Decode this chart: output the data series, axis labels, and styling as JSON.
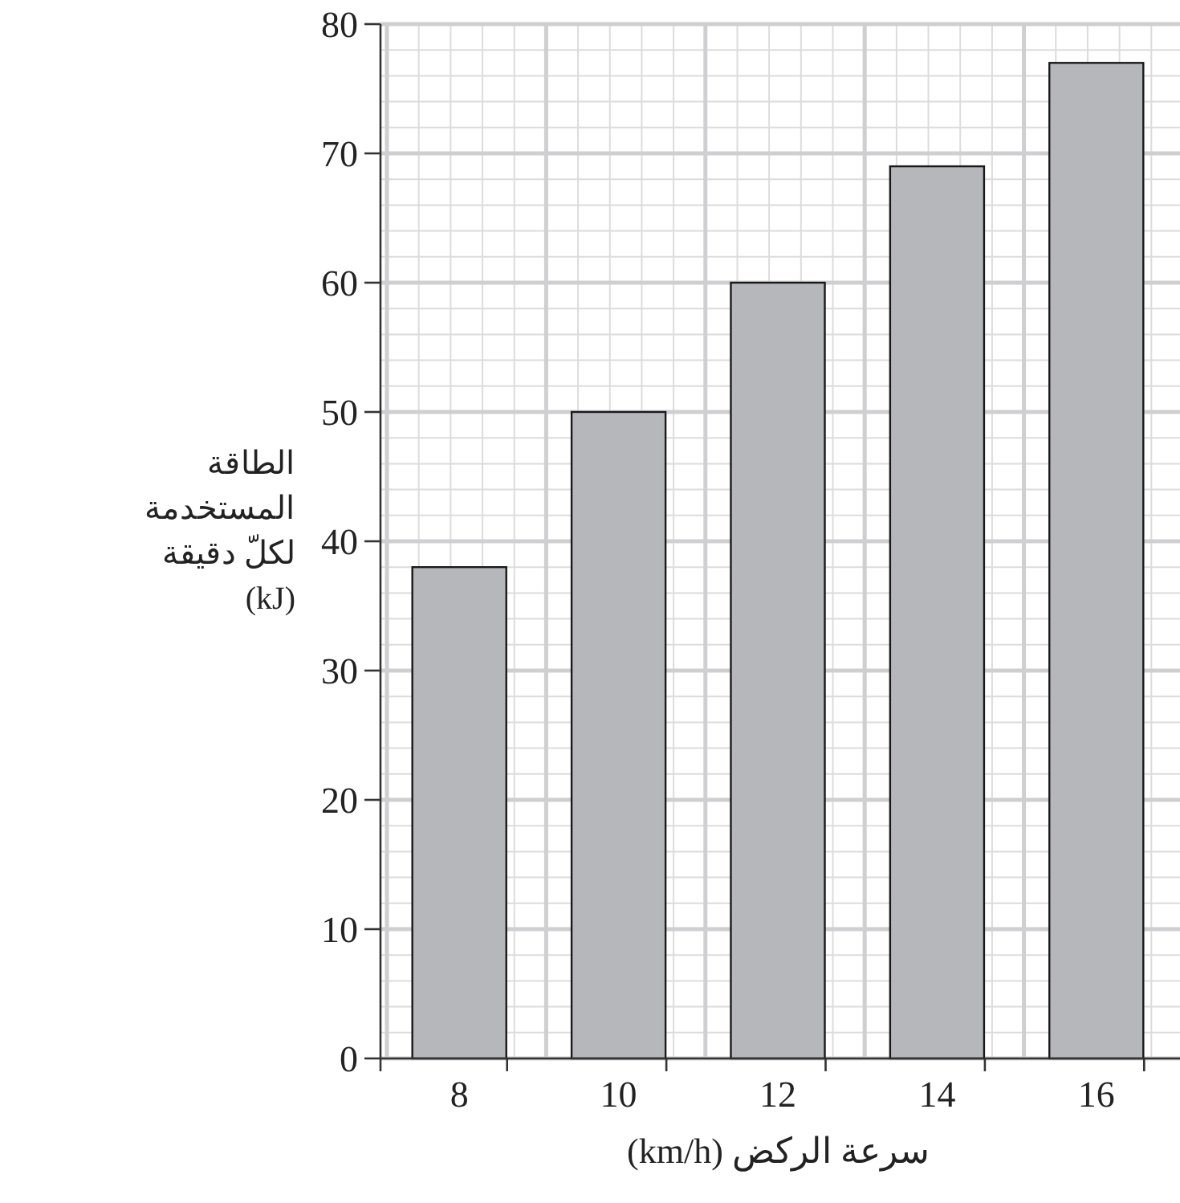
{
  "chart_data": {
    "type": "bar",
    "xlabel": "سرعة الركض (km/h)",
    "ylabel": "الطاقة\nالمستخدمة\nلكلّ دقيقة\n(kJ)",
    "categories": [
      "8",
      "10",
      "12",
      "14",
      "16"
    ],
    "values": [
      38,
      50,
      60,
      69,
      77
    ],
    "color": "#b6b7bb",
    "ylim": [
      0,
      80
    ],
    "yticks": [
      0,
      10,
      20,
      30,
      40,
      50,
      60,
      70,
      80
    ],
    "grid": true
  }
}
